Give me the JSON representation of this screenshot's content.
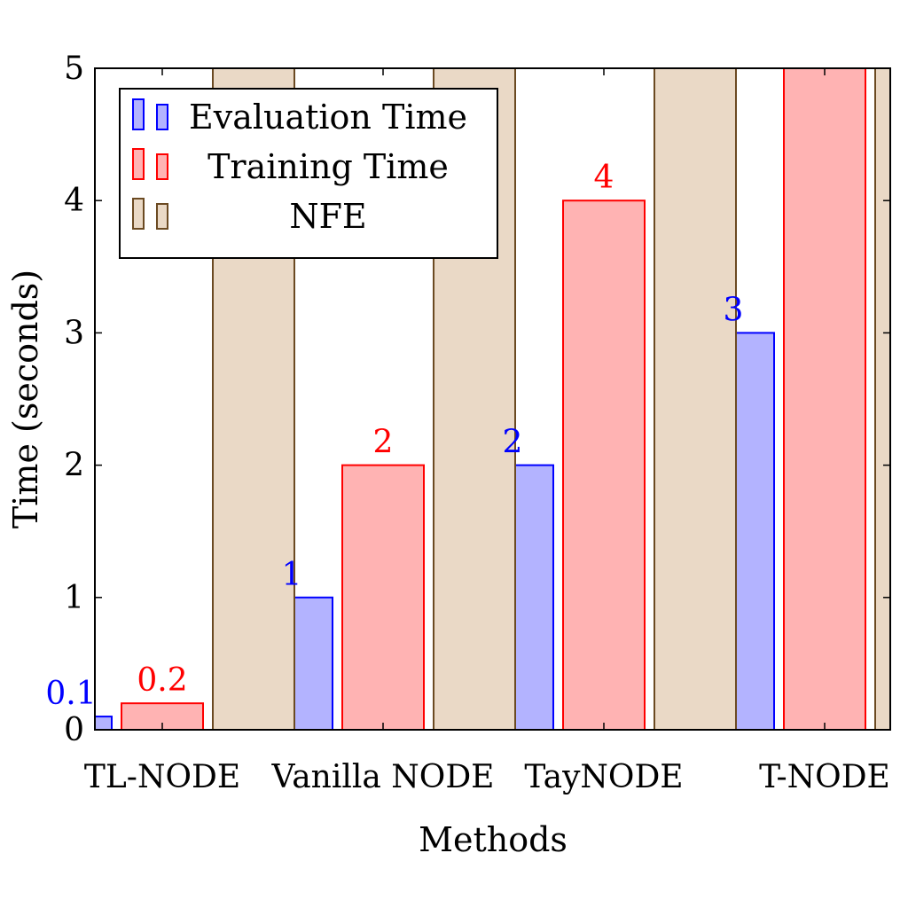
{
  "chart_data": {
    "type": "bar",
    "title": "",
    "xlabel": "Methods",
    "ylabel": "Time (seconds)",
    "categories": [
      "TL-NODE",
      "Vanilla NODE",
      "TayNODE",
      "T-NODE"
    ],
    "ylim": [
      0,
      5
    ],
    "yticks": [
      "0",
      "1",
      "2",
      "3",
      "4",
      "5"
    ],
    "grid": false,
    "legend_position": "top-left",
    "series": [
      {
        "name": "Evaluation Time",
        "values": [
          0.1,
          1,
          2,
          3
        ],
        "labels": [
          "0.1",
          "1",
          "2",
          "3"
        ],
        "fill": "#b3b3ff",
        "stroke": "#0000ff",
        "label_color": "#0000ff"
      },
      {
        "name": "Training Time",
        "values": [
          0.2,
          2,
          4,
          5
        ],
        "labels": [
          "0.2",
          "2",
          "4",
          ""
        ],
        "fill": "#ffb3b3",
        "stroke": "#ff0000",
        "label_color": "#ff0000"
      },
      {
        "name": "NFE",
        "values": [
          5,
          5,
          5,
          5
        ],
        "labels": [
          "",
          "",
          "",
          ""
        ],
        "fill": "#ead9c6",
        "stroke": "#6b4a22",
        "label_color": "#6b4a22"
      }
    ]
  }
}
